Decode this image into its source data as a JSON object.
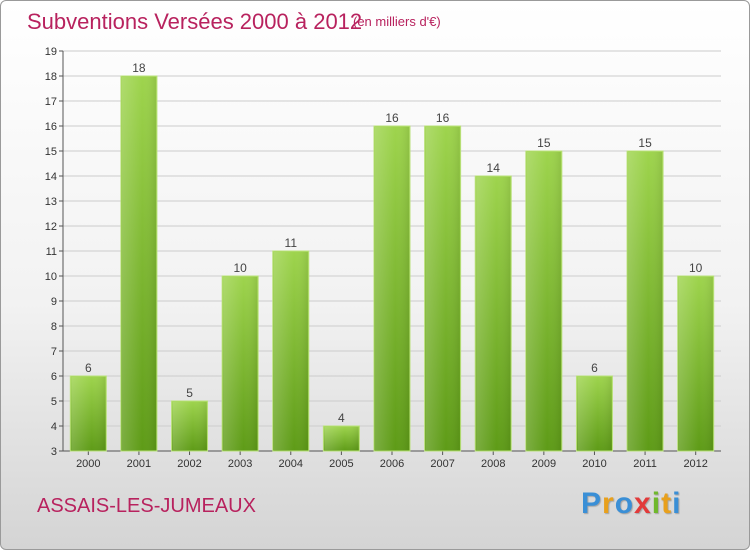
{
  "header": {
    "title": "Subventions Versées 2000 à 2012",
    "unit": "(en milliers d'€)"
  },
  "footer": {
    "commune": "ASSAIS-LES-JUMEAUX",
    "logo_letters": [
      "P",
      "r",
      "o",
      "x",
      "i",
      "t",
      "i"
    ]
  },
  "colors": {
    "title": "#b8225e",
    "bar_top": "#9ed44d",
    "bar_bottom": "#5e9b17",
    "grid": "#cccccc"
  },
  "chart_data": {
    "type": "bar",
    "title": "Subventions Versées 2000 à 2012",
    "subtitle": "(en milliers d'€)",
    "xlabel": "",
    "ylabel": "",
    "categories": [
      "2000",
      "2001",
      "2002",
      "2003",
      "2004",
      "2005",
      "2006",
      "2007",
      "2008",
      "2009",
      "2010",
      "2011",
      "2012"
    ],
    "values": [
      6,
      18,
      5,
      10,
      11,
      4,
      16,
      16,
      14,
      15,
      6,
      15,
      10
    ],
    "ylim": [
      3,
      19
    ],
    "yticks": [
      3,
      4,
      5,
      6,
      7,
      8,
      9,
      10,
      11,
      12,
      13,
      14,
      15,
      16,
      17,
      18,
      19
    ],
    "grid": true,
    "data_labels": true
  }
}
